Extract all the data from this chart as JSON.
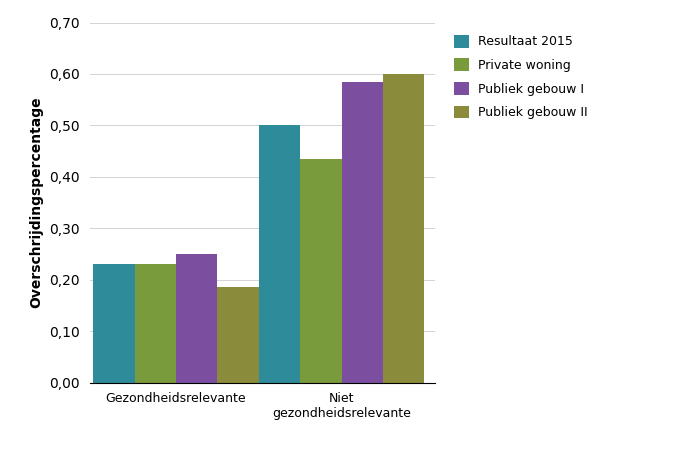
{
  "categories": [
    "Gezondheidsrelevante",
    "Niet\ngezondheidsrelevante"
  ],
  "series": {
    "Resultaat 2015": [
      0.23,
      0.5
    ],
    "Private woning": [
      0.23,
      0.435
    ],
    "Publiek gebouw I": [
      0.25,
      0.585
    ],
    "Publiek gebouw II": [
      0.185,
      0.6
    ]
  },
  "colors": {
    "Resultaat 2015": "#2E8B9A",
    "Private woning": "#7A9B3C",
    "Publiek gebouw I": "#7B4EA0",
    "Publiek gebouw II": "#8B8B3C"
  },
  "ylabel": "Overschrijdingspercentage",
  "ylim": [
    0,
    0.7
  ],
  "yticks": [
    0.0,
    0.1,
    0.2,
    0.3,
    0.4,
    0.5,
    0.6,
    0.7
  ],
  "legend_order": [
    "Resultaat 2015",
    "Private woning",
    "Publiek gebouw I",
    "Publiek gebouw II"
  ],
  "bar_width": 0.12,
  "group_centers": [
    0.3,
    0.78
  ]
}
